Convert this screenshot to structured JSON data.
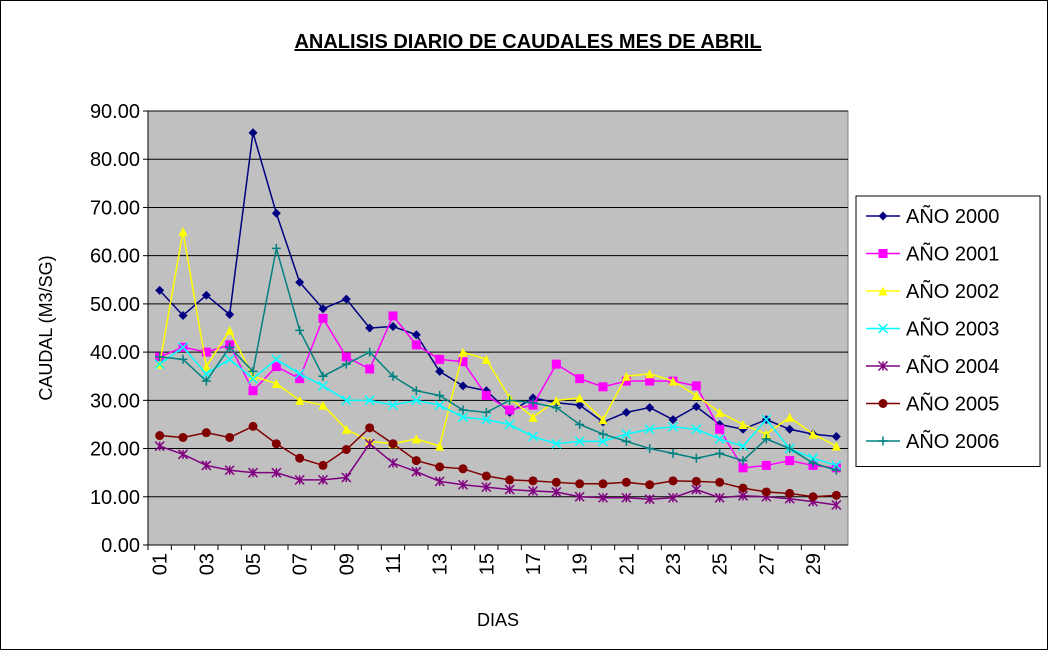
{
  "chart_data": {
    "type": "line",
    "title": "ANALISIS DIARIO DE CAUDALES MES DE ABRIL",
    "x_label": "DIAS",
    "y_label": "CAUDAL (M3/SG)",
    "categories": [
      "01",
      null,
      "03",
      null,
      "05",
      null,
      "07",
      null,
      "09",
      null,
      "11",
      null,
      "13",
      null,
      "15",
      null,
      "17",
      null,
      "19",
      null,
      "21",
      null,
      "23",
      null,
      "25",
      null,
      "27",
      null,
      "29",
      null
    ],
    "ylim": [
      0,
      90
    ],
    "yticks": [
      {
        "value": 0,
        "label": "0.00"
      },
      {
        "value": 10,
        "label": "10.00"
      },
      {
        "value": 20,
        "label": "20.00"
      },
      {
        "value": 30,
        "label": "30.00"
      },
      {
        "value": 40,
        "label": "40.00"
      },
      {
        "value": 50,
        "label": "50.00"
      },
      {
        "value": 60,
        "label": "60.00"
      },
      {
        "value": 70,
        "label": "70.00"
      },
      {
        "value": 80,
        "label": "80.00"
      },
      {
        "value": 90,
        "label": "90.00"
      }
    ],
    "grid": true,
    "legend": "right",
    "series": [
      {
        "name": "AÑO 2000",
        "color": "#000080",
        "marker": "diamond",
        "values": [
          52.8,
          47.6,
          51.8,
          47.8,
          85.5,
          68.8,
          54.5,
          49,
          51,
          45,
          45.3,
          43.6,
          36,
          33,
          32,
          27.5,
          30.5,
          29.5,
          29,
          25.5,
          27.5,
          28.5,
          26,
          28.7,
          25,
          24,
          26,
          24,
          23,
          22.5
        ]
      },
      {
        "name": "AÑO 2001",
        "color": "#ff00ff",
        "marker": "square",
        "values": [
          39,
          41,
          40,
          41.5,
          32,
          37,
          34.5,
          47,
          39,
          36.5,
          47.5,
          41.5,
          38.5,
          38,
          31,
          28,
          29,
          37.5,
          34.5,
          32.8,
          34,
          34,
          34,
          33,
          24,
          16,
          16.5,
          17.5,
          16.5,
          16
        ]
      },
      {
        "name": "AÑO 2002",
        "color": "#ffff00",
        "marker": "triangle",
        "values": [
          37.5,
          65,
          37,
          44.5,
          35,
          33.5,
          30,
          29,
          24,
          21.5,
          21,
          22,
          20.5,
          40,
          38.5,
          30.5,
          26.5,
          30,
          30.5,
          26,
          35,
          35.5,
          34,
          31,
          27.5,
          25,
          23,
          26.5,
          23,
          20.5
        ]
      },
      {
        "name": "AÑO 2003",
        "color": "#00ffff",
        "marker": "x",
        "values": [
          37.5,
          41,
          35.5,
          38.5,
          34.5,
          38.5,
          35.5,
          33,
          30,
          30,
          29,
          30,
          29,
          26.5,
          26,
          25,
          22.5,
          21,
          21.5,
          21.5,
          23,
          24,
          24.5,
          24,
          22,
          20.5,
          26,
          20,
          18,
          16.5
        ]
      },
      {
        "name": "AÑO 2004",
        "color": "#800080",
        "marker": "star",
        "values": [
          20.5,
          18.8,
          16.5,
          15.5,
          15,
          15,
          13.5,
          13.5,
          14,
          21,
          17,
          15.2,
          13.2,
          12.5,
          12,
          11.5,
          11.2,
          11,
          10,
          9.8,
          9.8,
          9.5,
          9.8,
          11.5,
          9.8,
          10.2,
          10,
          9.6,
          9,
          8.3
        ]
      },
      {
        "name": "AÑO 2005",
        "color": "#800000",
        "marker": "circle",
        "values": [
          22.7,
          22.3,
          23.3,
          22.3,
          24.6,
          21,
          18,
          16.5,
          19.8,
          24.3,
          21,
          17.5,
          16.2,
          15.8,
          14.3,
          13.5,
          13.3,
          13,
          12.7,
          12.7,
          13,
          12.5,
          13.3,
          13.2,
          13,
          11.8,
          11,
          10.7,
          10,
          10.3
        ]
      },
      {
        "name": "AÑO 2006",
        "color": "#008080",
        "marker": "plus",
        "values": [
          39,
          38.5,
          34,
          41,
          36,
          61.5,
          44.5,
          35,
          37.5,
          40,
          35,
          32,
          31,
          28,
          27.5,
          30,
          29.5,
          28.5,
          25,
          23,
          21.5,
          20,
          19,
          18,
          19,
          17.5,
          22,
          20,
          17,
          15.5
        ]
      }
    ]
  }
}
